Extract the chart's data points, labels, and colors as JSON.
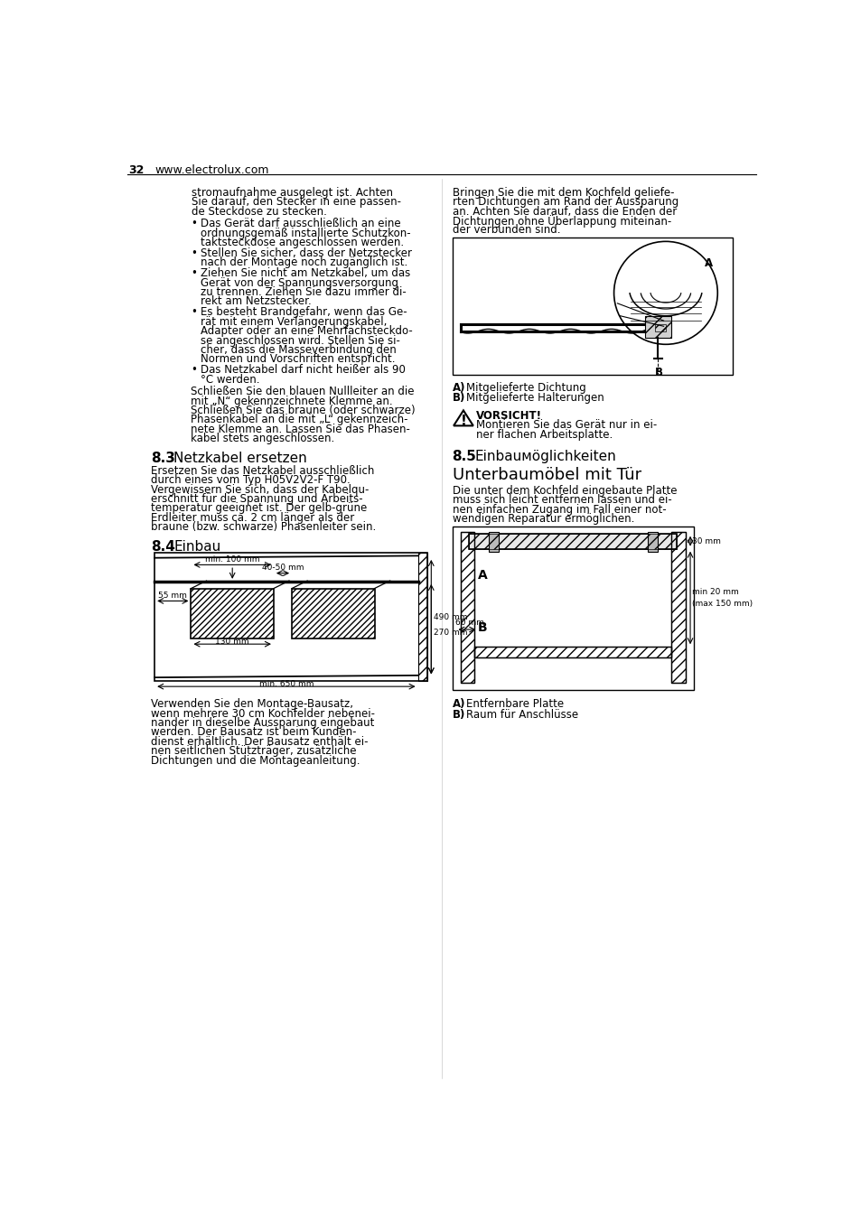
{
  "page_number": "32",
  "website": "www.electrolux.com",
  "background_color": "#ffffff",
  "text_color": "#000000",
  "sections": {
    "left_col_top_text": [
      "stromaufnahme ausgelegt ist. Achten",
      "Sie darauf, den Stecker in eine passen-",
      "de Steckdose zu stecken."
    ],
    "bullets_left": [
      [
        "Das Gerät darf ausschließlich an eine",
        "ordnungsgemäß installierte Schutzkon-",
        "taktsteckdose angeschlossen werden."
      ],
      [
        "Stellen Sie sicher, dass der Netzstecker",
        "nach der Montage noch zugänglich ist."
      ],
      [
        "Ziehen Sie nicht am Netzkabel, um das",
        "Gerät von der Spannungsversorgung",
        "zu trennen. Ziehen Sie dazu immer di-",
        "rekt am Netzstecker."
      ],
      [
        "Es besteht Brandgefahr, wenn das Ge-",
        "rät mit einem Verlängerungskabel,",
        "Adapter oder an eine Mehrfachsteckdo-",
        "se angeschlossen wird. Stellen Sie si-",
        "cher, dass die Masseverbindung den",
        "Normen und Vorschriften entspricht."
      ],
      [
        "Das Netzkabel darf nicht heißer als 90",
        "°C werden."
      ]
    ],
    "left_col_para1": [
      "Schließen Sie den blauen Nullleiter an die",
      "mit „N“ gekennzeichnete Klemme an.",
      "Schließen Sie das braune (oder schwarze)",
      "Phasenkabel an die mit „L“ gekennzeich-",
      "nete Klemme an. Lassen Sie das Phasen-",
      "kabel stets angeschlossen."
    ],
    "section_83_num": "8.3",
    "section_83_title": "Netzkabel ersetzen",
    "section_83_text": [
      "Ersetzen Sie das Netzkabel ausschließlich",
      "durch eines vom Typ H05V2V2-F T90.",
      "Vergewissern Sie sich, dass der Kabelqu-",
      "erschnitt für die Spannung und Arbeits-",
      "temperatur geeignet ist. Der gelb-grüne",
      "Erdleiter muss ca. 2 cm länger als der",
      "braune (bzw. schwarze) Phasenleiter sein."
    ],
    "section_84_num": "8.4",
    "section_84_title": "Einbau",
    "section_84_text": [
      "Verwenden Sie den Montage-Bausatz,",
      "wenn mehrere 30 cm Kochfelder nebenei-",
      "nander in dieselbe Aussparung eingebaut",
      "werden. Der Bausatz ist beim Kunden-",
      "dienst erhältlich. Der Bausatz enthält ei-",
      "nen seitlichen Stützträger, zusätzliche",
      "Dichtungen und die Montageanleitung."
    ],
    "right_col_top_text": [
      "Bringen Sie die mit dem Kochfeld geliefe-",
      "rten Dichtungen am Rand der Aussparung",
      "an. Achten Sie darauf, dass die Enden der",
      "Dichtungen ohne Überlappung miteinan-",
      "der verbunden sind."
    ],
    "fig1_label_A": "Mitgelieferte Dichtung",
    "fig1_label_B": "Mitgelieferte Halterungen",
    "caution_title": "VORSICHT!",
    "caution_text": [
      "Montieren Sie das Gerät nur in ei-",
      "ner flachen Arbeitsplatte."
    ],
    "section_85_num": "8.5",
    "section_85_title": "Einbauмöglichkeiten",
    "section_85b_title": "Unterbaumöbel mit Tür",
    "section_85_text": [
      "Die unter dem Kochfeld eingebaute Platte",
      "muss sich leicht entfernen lassen und ei-",
      "nen einfachen Zugang im Fall einer not-",
      "wendigen Reparatur ermöglichen."
    ],
    "fig2_label_A": "Entfernbare Platte",
    "fig2_label_B": "Raum für Anschlüsse",
    "fig2_dim_30mm": "30 mm",
    "fig2_dim_min20mm": "min 20 mm",
    "fig2_dim_max150mm": "(max 150 mm)",
    "fig2_dim_60mm": "60 mm",
    "einbau_dim_min100mm": "min. 100 mm",
    "einbau_dim_490mm": "490 mm",
    "einbau_dim_min650mm": "min. 650 mm",
    "einbau_dim_4050mm": "40-50 mm",
    "einbau_dim_55mm": "55 mm",
    "einbau_dim_130mm": "130 mm",
    "einbau_dim_270mm": "270 mm"
  }
}
